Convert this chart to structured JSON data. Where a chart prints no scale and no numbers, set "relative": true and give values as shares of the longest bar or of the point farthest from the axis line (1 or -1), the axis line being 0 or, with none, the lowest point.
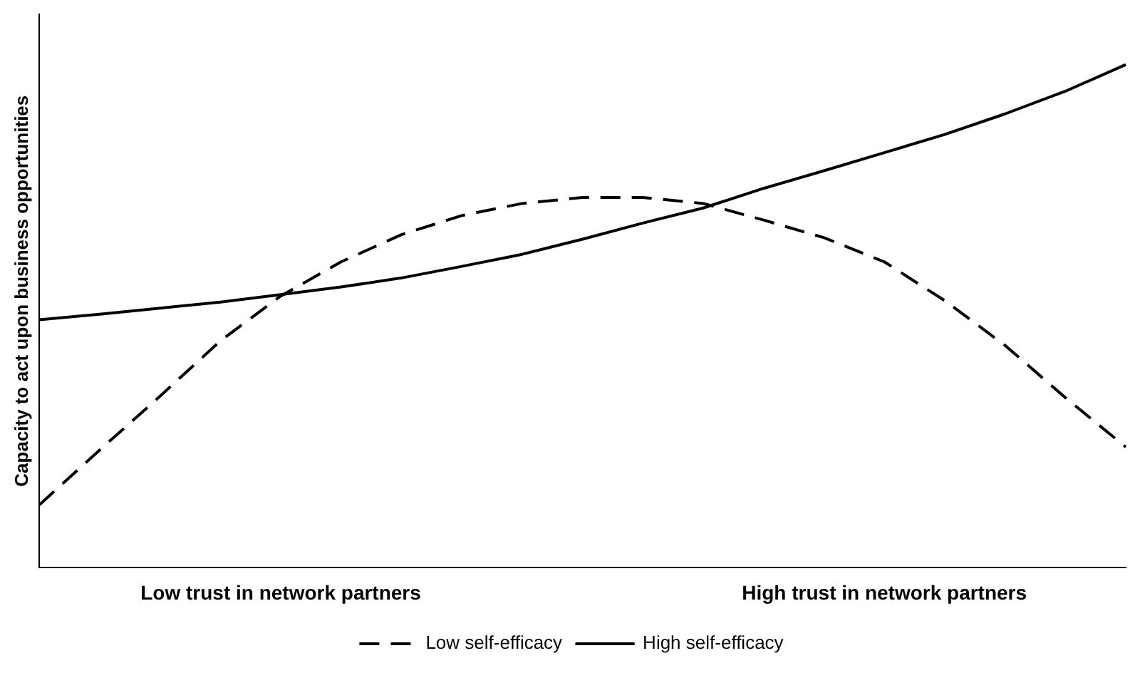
{
  "chart_data": {
    "type": "line",
    "relative": true,
    "ylabel": "Capacity to act upon business opportunities",
    "categories": [
      null,
      null,
      null,
      null,
      "Low trust in network partners",
      null,
      null,
      null,
      null,
      null,
      null,
      null,
      null,
      null,
      "High trust in network partners",
      null,
      null,
      null,
      null
    ],
    "legend": "bottom",
    "grid": false,
    "marker": "none",
    "tick_labels": "x",
    "series": [
      {
        "name": "Low self-efficacy",
        "color": "#000000",
        "line_style": "dashed",
        "values": [
          0.125,
          0.234,
          0.341,
          0.451,
          0.54,
          0.608,
          0.662,
          0.7,
          0.724,
          0.736,
          0.736,
          0.724,
          0.691,
          0.656,
          0.608,
          0.531,
          0.442,
          0.338,
          0.24
        ]
      },
      {
        "name": "High self-efficacy",
        "color": "#000000",
        "line_style": "solid",
        "values": [
          0.493,
          0.504,
          0.516,
          0.528,
          0.543,
          0.558,
          0.576,
          0.599,
          0.623,
          0.653,
          0.685,
          0.715,
          0.754,
          0.789,
          0.825,
          0.861,
          0.902,
          0.947,
          1
        ]
      }
    ]
  }
}
